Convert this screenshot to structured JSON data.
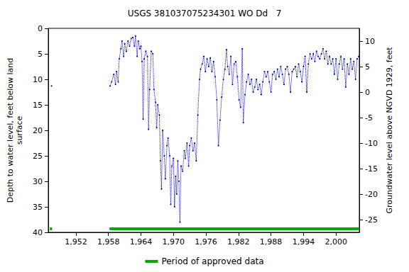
{
  "chart_data": {
    "type": "line",
    "title": "USGS 381037075234301 WO Dd   7",
    "y_label": "Depth to water level, feet below land\nsurface",
    "y2_label": "Groundwater level above NGVD 1929, feet",
    "color": "#0000cc",
    "marker": "dot",
    "line_style": "dotted",
    "grid": false,
    "xlim": [
      1946.9,
      2004.3
    ],
    "xticks": [
      1952,
      1958,
      1964,
      1970,
      1976,
      1982,
      1988,
      1994,
      2000
    ],
    "ylim": [
      40,
      0
    ],
    "yticks": [
      0,
      5,
      10,
      15,
      20,
      25,
      30,
      35,
      40
    ],
    "y2lim": [
      -27.5,
      12.5
    ],
    "y2ticks": [
      -25,
      -20,
      -15,
      -10,
      -5,
      0,
      5,
      10
    ],
    "approved_periods": {
      "name": "Period of approved data",
      "color": "#00aa00",
      "ranges": [
        [
          1947.2,
          1947.6
        ],
        [
          1958.2,
          2004.3
        ]
      ]
    },
    "x": [
      1947.5,
      1958.3,
      1958.6,
      1959.0,
      1959.3,
      1959.5,
      1959.8,
      1960.0,
      1960.3,
      1960.5,
      1960.8,
      1961.0,
      1961.3,
      1961.6,
      1961.9,
      1962.2,
      1962.5,
      1962.8,
      1963.0,
      1963.3,
      1963.5,
      1963.8,
      1964.0,
      1964.2,
      1964.4,
      1964.6,
      1964.9,
      1965.2,
      1965.4,
      1965.6,
      1965.9,
      1966.2,
      1966.4,
      1966.7,
      1966.9,
      1967.1,
      1967.4,
      1967.6,
      1967.8,
      1968.0,
      1968.3,
      1968.5,
      1968.8,
      1969.0,
      1969.3,
      1969.5,
      1969.7,
      1970.0,
      1970.2,
      1970.4,
      1970.6,
      1970.8,
      1971.0,
      1971.2,
      1971.4,
      1971.7,
      1972.0,
      1972.2,
      1972.5,
      1972.8,
      1973.0,
      1973.3,
      1973.6,
      1973.9,
      1974.2,
      1974.5,
      1974.8,
      1975.0,
      1975.3,
      1975.6,
      1975.9,
      1976.2,
      1976.5,
      1976.8,
      1977.1,
      1977.4,
      1977.7,
      1978.0,
      1978.3,
      1978.6,
      1978.9,
      1979.2,
      1979.5,
      1979.8,
      1980.0,
      1980.3,
      1980.6,
      1980.9,
      1981.2,
      1981.5,
      1981.8,
      1982.1,
      1982.4,
      1982.7,
      1982.9,
      1983.2,
      1983.5,
      1983.8,
      1984.1,
      1984.4,
      1984.7,
      1985.0,
      1985.3,
      1985.6,
      1985.9,
      1986.2,
      1986.5,
      1986.8,
      1987.1,
      1987.4,
      1987.7,
      1988.0,
      1988.3,
      1988.6,
      1988.9,
      1989.2,
      1989.5,
      1989.8,
      1990.1,
      1990.4,
      1990.7,
      1991.0,
      1991.3,
      1991.6,
      1991.9,
      1992.2,
      1992.5,
      1992.8,
      1993.1,
      1993.4,
      1993.7,
      1994.0,
      1994.3,
      1994.6,
      1994.9,
      1995.2,
      1995.5,
      1995.8,
      1996.1,
      1996.4,
      1996.7,
      1997.0,
      1997.3,
      1997.6,
      1997.9,
      1998.2,
      1998.5,
      1998.8,
      1999.1,
      1999.4,
      1999.7,
      2000.0,
      2000.3,
      2000.6,
      2000.9,
      2001.2,
      2001.5,
      2001.8,
      2002.1,
      2002.4,
      2002.7,
      2003.0,
      2003.3,
      2003.6,
      2003.9,
      2004.2
    ],
    "values": [
      11.3,
      11.3,
      10.5,
      9.0,
      11,
      8.5,
      10.5,
      6,
      4,
      2.5,
      5.5,
      3.0,
      4.5,
      2.5,
      3.5,
      2.0,
      1.8,
      3.5,
      1.5,
      5.5,
      2.5,
      4.0,
      3.5,
      6.5,
      17.8,
      6.0,
      4.5,
      5.5,
      19.8,
      12,
      4.5,
      5.0,
      12,
      14.5,
      19.5,
      15,
      17,
      26,
      31.5,
      20,
      25,
      29.5,
      23,
      21.5,
      25,
      34.5,
      27,
      25.5,
      35,
      29,
      32.5,
      26,
      30,
      38,
      27,
      28,
      24,
      25.5,
      22.5,
      27,
      23,
      21.5,
      24,
      22.5,
      26,
      17,
      10,
      8,
      7,
      5.5,
      8.5,
      6,
      7.5,
      5.8,
      8.5,
      6.5,
      9.5,
      14,
      23,
      18,
      13.5,
      10,
      8,
      4.2,
      7.5,
      9.0,
      5.5,
      11,
      7,
      6.5,
      9.5,
      14,
      15.5,
      4,
      18.5,
      13,
      10.5,
      9,
      11,
      10,
      12.5,
      11.5,
      10,
      12,
      11,
      13,
      10.5,
      8.5,
      9.5,
      8.5,
      10.5,
      12.5,
      9.0,
      8.5,
      10,
      8.0,
      9.5,
      7.5,
      9,
      11,
      8,
      7.5,
      9,
      12.5,
      8.5,
      8,
      7.5,
      9.5,
      7,
      8.5,
      10.5,
      7.5,
      5.5,
      12.5,
      7,
      5,
      6,
      5,
      6.5,
      4.5,
      5.5,
      6,
      5,
      4,
      6,
      4.5,
      7,
      5.5,
      7,
      6,
      9,
      6,
      10,
      7,
      5.5,
      8,
      6,
      11.5,
      7,
      9,
      6,
      8,
      6.5,
      10,
      6,
      5.5
    ]
  }
}
